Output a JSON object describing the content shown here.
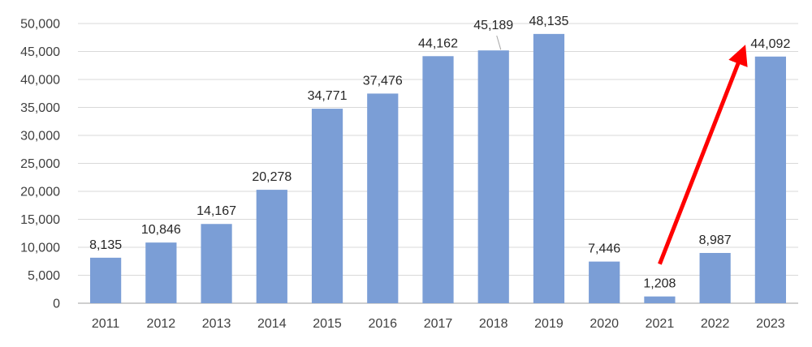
{
  "chart_data": {
    "type": "bar",
    "title": "",
    "xlabel": "",
    "ylabel": "",
    "categories": [
      "2011",
      "2012",
      "2013",
      "2014",
      "2015",
      "2016",
      "2017",
      "2018",
      "2019",
      "2020",
      "2021",
      "2022",
      "2023"
    ],
    "values": [
      8135,
      10846,
      14167,
      20278,
      34771,
      37476,
      44162,
      45189,
      48135,
      7446,
      1208,
      8987,
      44092
    ],
    "data_labels": [
      "8,135",
      "10,846",
      "14,167",
      "20,278",
      "34,771",
      "37,476",
      "44,162",
      "45,189",
      "48,135",
      "7,446",
      "1,208",
      "8,987",
      "44,092"
    ],
    "ylim": [
      0,
      50000
    ],
    "y_ticks": [
      0,
      5000,
      10000,
      15000,
      20000,
      25000,
      30000,
      35000,
      40000,
      45000,
      50000
    ],
    "y_tick_labels": [
      "0",
      "5,000",
      "10,000",
      "15,000",
      "20,000",
      "25,000",
      "30,000",
      "35,000",
      "40,000",
      "45,000",
      "50,000"
    ],
    "grid": true,
    "legend": "none",
    "bar_color": "#7b9ed6",
    "annotations": [
      {
        "type": "arrow",
        "color": "#ff0000",
        "from": {
          "x": "2021",
          "y": 7000
        },
        "to": {
          "x": "2022.5",
          "y": 45000
        }
      }
    ]
  }
}
